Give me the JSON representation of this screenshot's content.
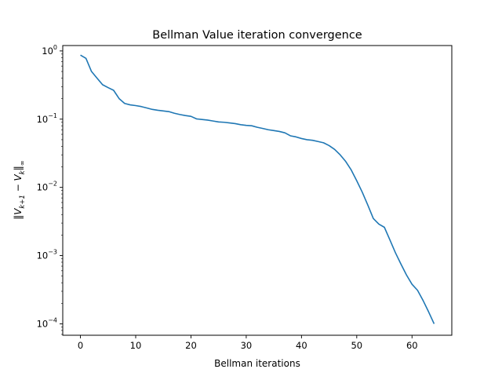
{
  "chart_data": {
    "type": "line",
    "title": "Bellman Value iteration convergence",
    "xlabel": "Bellman iterations",
    "ylabel": "‖V_{k+1} − V_k‖_∞",
    "yscale": "log",
    "xlim": [
      -3.2,
      67.2
    ],
    "ylim": [
      6.8e-05,
      1.2
    ],
    "xticks": [
      0,
      10,
      20,
      30,
      40,
      50,
      60
    ],
    "yticks": [
      {
        "value": 1,
        "base": "10",
        "exp": "0"
      },
      {
        "value": 0.1,
        "base": "10",
        "exp": "−1"
      },
      {
        "value": 0.01,
        "base": "10",
        "exp": "−2"
      },
      {
        "value": 0.001,
        "base": "10",
        "exp": "−3"
      },
      {
        "value": 0.0001,
        "base": "10",
        "exp": "−4"
      }
    ],
    "grid": false,
    "line_color": "#1f77b4",
    "series": [
      {
        "x": [
          0,
          1,
          2,
          3,
          4,
          5,
          6,
          7,
          8,
          9,
          10,
          11,
          12,
          13,
          14,
          15,
          16,
          17,
          18,
          19,
          20,
          21,
          22,
          23,
          24,
          25,
          26,
          27,
          28,
          29,
          30,
          31,
          32,
          33,
          34,
          35,
          36,
          37,
          38,
          39,
          40,
          41,
          42,
          43,
          44,
          45,
          46,
          47,
          48,
          49,
          50,
          51,
          52,
          53,
          54,
          55,
          56,
          57,
          58,
          59,
          60,
          61,
          62,
          63,
          64
        ],
        "y": [
          0.87,
          0.78,
          0.5,
          0.4,
          0.32,
          0.29,
          0.265,
          0.2,
          0.17,
          0.162,
          0.158,
          0.153,
          0.146,
          0.139,
          0.135,
          0.132,
          0.129,
          0.122,
          0.117,
          0.113,
          0.11,
          0.101,
          0.099,
          0.097,
          0.094,
          0.091,
          0.09,
          0.088,
          0.086,
          0.083,
          0.081,
          0.08,
          0.076,
          0.073,
          0.07,
          0.068,
          0.066,
          0.063,
          0.057,
          0.055,
          0.052,
          0.05,
          0.049,
          0.047,
          0.045,
          0.041,
          0.036,
          0.03,
          0.024,
          0.018,
          0.0125,
          0.0085,
          0.0055,
          0.0035,
          0.0029,
          0.0026,
          0.0017,
          0.0011,
          0.00075,
          0.00052,
          0.00038,
          0.00031,
          0.00022,
          0.00015,
          0.0001
        ]
      }
    ]
  }
}
